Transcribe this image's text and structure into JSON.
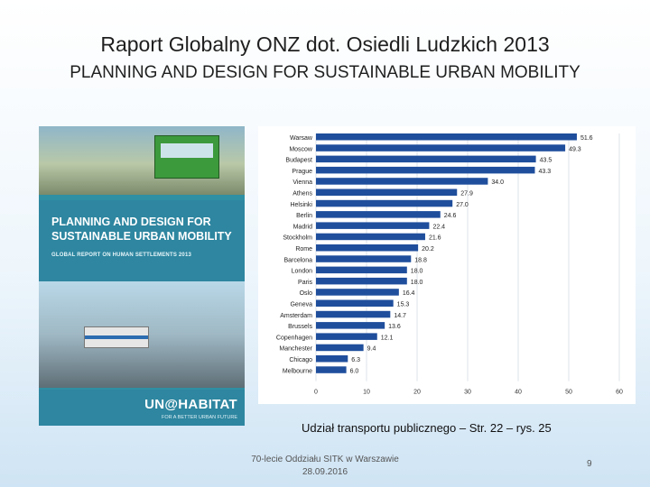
{
  "slide": {
    "title_line1": "Raport Globalny ONZ dot. Osiedli Ludzkich 2013",
    "title_line2": "PLANNING AND DESIGN FOR SUSTAINABLE URBAN MOBILITY",
    "caption": "Udział transportu publicznego – Str. 22 – rys. 25",
    "footer_line1": "70-lecie Oddziału SITK w Warszawie",
    "footer_line2": "28.09.2016",
    "page_number": "9"
  },
  "cover": {
    "title": "PLANNING AND DESIGN FOR SUSTAINABLE URBAN MOBILITY",
    "subtitle": "GLOBAL REPORT ON HUMAN SETTLEMENTS 2013",
    "logo": "UN@HABITAT",
    "tagline": "FOR A BETTER URBAN FUTURE"
  },
  "colors": {
    "bar": "#1f4e9c",
    "grid": "#dde3ea",
    "cover_teal": "#2e86a0"
  },
  "chart_data": {
    "type": "bar",
    "orientation": "horizontal",
    "categories": [
      "Warsaw",
      "Moscow",
      "Budapest",
      "Prague",
      "Vienna",
      "Athens",
      "Helsinki",
      "Berlin",
      "Madrid",
      "Stockholm",
      "Rome",
      "Barcelona",
      "London",
      "Paris",
      "Oslo",
      "Geneva",
      "Amsterdam",
      "Brussels",
      "Copenhagen",
      "Manchester",
      "Chicago",
      "Melbourne"
    ],
    "values": [
      51.6,
      49.3,
      43.5,
      43.3,
      34.0,
      27.9,
      27.0,
      24.6,
      22.4,
      21.6,
      20.2,
      18.8,
      18.0,
      18.0,
      16.4,
      15.3,
      14.7,
      13.6,
      12.1,
      9.4,
      6.3,
      6.0
    ],
    "value_labels": [
      "51.6",
      "49.3",
      "43.5",
      "43.3",
      "34.0",
      "27.9",
      "27.0",
      "24.6",
      "22.4",
      "21.6",
      "20.2",
      "18.8",
      "18.0",
      "18.0",
      "16.4",
      "15.3",
      "14.7",
      "13.6",
      "12.1",
      "9.4",
      "6.3",
      "6.0"
    ],
    "xlim": [
      0,
      60
    ],
    "xticks": [
      0,
      10,
      20,
      30,
      40,
      50,
      60
    ],
    "grid": true
  }
}
